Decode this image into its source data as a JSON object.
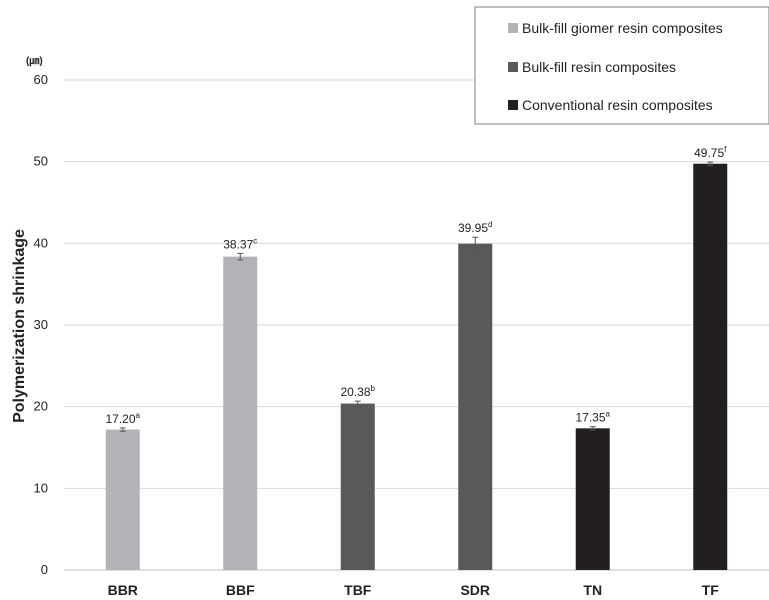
{
  "chart_data": {
    "type": "bar",
    "categories": [
      "BBR",
      "BBF",
      "TBF",
      "SDR",
      "TN",
      "TF"
    ],
    "values": [
      17.2,
      38.37,
      20.38,
      39.95,
      17.35,
      49.75
    ],
    "value_labels": [
      "17.20",
      "38.37",
      "20.38",
      "39.95",
      "17.35",
      "49.75"
    ],
    "significance": [
      "a",
      "c",
      "b",
      "d",
      "a",
      "f"
    ],
    "error_bars": [
      0.2,
      0.4,
      0.3,
      0.8,
      0.2,
      0.2
    ],
    "group_index": [
      0,
      0,
      1,
      1,
      2,
      2
    ],
    "groups": [
      {
        "name": "Bulk-fill giomer resin composites",
        "color": "#b2b3b7"
      },
      {
        "name": "Bulk-fill resin composites",
        "color": "#58595b"
      },
      {
        "name": "Conventional resin composites",
        "color": "#231f20"
      }
    ],
    "ylabel": "Polymerization shrinkage",
    "unit": "(㎛)",
    "ylim": [
      0,
      60
    ],
    "yticks": [
      0,
      10,
      20,
      30,
      40,
      50,
      60
    ],
    "grid": true,
    "legend_position": "top-right"
  }
}
